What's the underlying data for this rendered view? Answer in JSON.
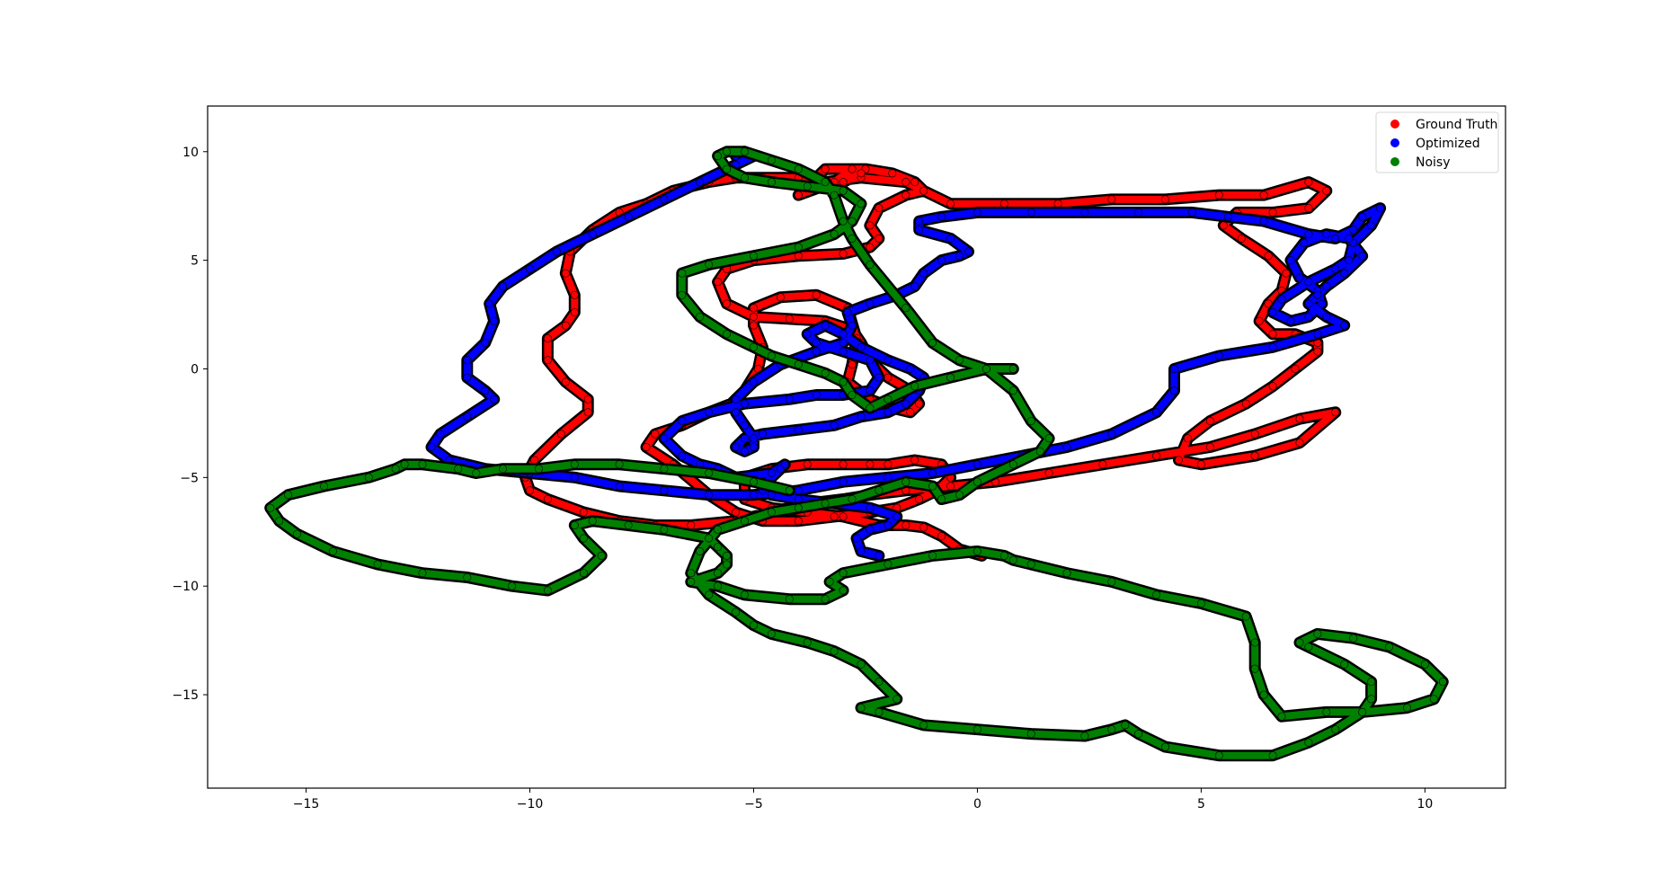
{
  "chart_data": {
    "type": "scatter",
    "title": "",
    "xlabel": "",
    "ylabel": "",
    "xlim": [
      -17.2,
      11.8
    ],
    "ylim": [
      -19.3,
      12.1
    ],
    "x_ticks": [
      -15,
      -10,
      -5,
      0,
      5,
      10
    ],
    "y_ticks": [
      10,
      5,
      0,
      -5,
      -10,
      -15
    ],
    "x_tick_labels": [
      "−15",
      "−10",
      "−5",
      "0",
      "5",
      "10"
    ],
    "y_tick_labels": [
      "10",
      "5",
      "0",
      "−5",
      "−10",
      "−15"
    ],
    "grid": false,
    "legend": {
      "placement": "top-right"
    },
    "series": [
      {
        "name": "Ground Truth",
        "color": "#ff0000",
        "x": [
          0.1,
          -0.4,
          -0.8,
          -1.2,
          -1.6,
          -2.2,
          -3.0,
          -3.8,
          -4.6,
          -5.2,
          -5.2,
          -4.6,
          -3.8,
          -3.0,
          -2.4,
          -2.0,
          -1.4,
          -0.8,
          -0.6,
          -0.9,
          -1.3,
          -1.8,
          -2.4,
          -3.2,
          -4.0,
          -4.8,
          -5.4,
          -6.0,
          -6.8,
          -7.4,
          -7.2,
          -6.6,
          -6.0,
          -5.5,
          -5.2,
          -4.9,
          -4.8,
          -5.0,
          -5.0,
          -4.4,
          -3.6,
          -2.9,
          -2.7,
          -2.8,
          -2.9,
          -2.4,
          -1.9,
          -1.5,
          -1.3,
          -1.5,
          -2.0,
          -2.4,
          -2.6,
          -2.8,
          -3.4,
          -4.2,
          -5.0,
          -5.6,
          -5.8,
          -5.6,
          -5.0,
          -4.0,
          -3.0,
          -2.4,
          -2.2,
          -2.4,
          -2.2,
          -1.6,
          -1.2,
          -1.4,
          -1.9,
          -2.5,
          -3.4,
          -4.0,
          -3.4,
          -2.6,
          -1.6,
          -0.6,
          0.6,
          1.8,
          3.0,
          4.2,
          5.4,
          6.4,
          7.4,
          7.8,
          7.4,
          6.6,
          5.8,
          5.5,
          5.9,
          6.5,
          6.9,
          6.8,
          6.5,
          6.3,
          6.6,
          7.1,
          7.6,
          7.6,
          7.1,
          6.6,
          6.0,
          5.2,
          4.7,
          4.5,
          5.0,
          6.2,
          7.2,
          8.0,
          7.2,
          6.2,
          5.2,
          4.0,
          2.8,
          1.6,
          0.4,
          -0.6,
          -1.6,
          -2.4,
          -3.0,
          -3.8,
          -4.6,
          -5.4,
          -6.4,
          -7.2,
          -8.0,
          -8.8,
          -9.6,
          -10.0,
          -10.1,
          -9.9,
          -9.3,
          -8.7,
          -8.7,
          -9.2,
          -9.6,
          -9.6,
          -9.2,
          -9.0,
          -9.0,
          -9.2,
          -9.1,
          -8.6,
          -8.0,
          -7.4,
          -6.8,
          -6.0,
          -5.4,
          -4.8,
          -4.0,
          -3.4,
          -3.0,
          -2.6,
          -2.8,
          -3.2,
          -4.0
        ],
        "y": [
          -8.6,
          -8.3,
          -7.7,
          -7.3,
          -7.2,
          -7.2,
          -6.8,
          -6.6,
          -6.4,
          -6.0,
          -5.0,
          -4.6,
          -4.4,
          -4.4,
          -4.4,
          -4.4,
          -4.2,
          -4.4,
          -5.0,
          -5.6,
          -6.0,
          -6.4,
          -6.6,
          -6.8,
          -7.0,
          -7.0,
          -6.6,
          -5.8,
          -4.4,
          -3.6,
          -3.0,
          -2.6,
          -2.0,
          -1.6,
          -1.0,
          0.0,
          1.0,
          2.0,
          2.8,
          3.3,
          3.4,
          2.8,
          1.4,
          0.2,
          -0.6,
          -1.4,
          -1.8,
          -2.0,
          -1.6,
          -1.0,
          -0.4,
          0.4,
          1.2,
          1.8,
          2.2,
          2.3,
          2.4,
          3.0,
          4.0,
          4.6,
          5.0,
          5.2,
          5.3,
          5.6,
          6.0,
          6.6,
          7.4,
          8.0,
          8.2,
          8.6,
          9.0,
          9.2,
          9.2,
          8.0,
          8.6,
          8.8,
          8.6,
          7.6,
          7.6,
          7.6,
          7.8,
          7.8,
          8.0,
          8.0,
          8.6,
          8.2,
          7.4,
          7.2,
          7.2,
          6.6,
          6.0,
          5.2,
          4.4,
          3.6,
          3.0,
          2.2,
          1.6,
          1.6,
          1.2,
          0.8,
          0.0,
          -0.8,
          -1.6,
          -2.4,
          -3.2,
          -4.2,
          -4.4,
          -4.0,
          -3.4,
          -2.0,
          -2.3,
          -3.0,
          -3.6,
          -4.0,
          -4.4,
          -4.8,
          -5.2,
          -5.4,
          -5.6,
          -5.8,
          -6.0,
          -6.2,
          -6.6,
          -7.0,
          -7.2,
          -7.2,
          -7.0,
          -6.6,
          -6.0,
          -5.6,
          -5.0,
          -4.2,
          -3.0,
          -2.0,
          -1.4,
          -0.6,
          0.4,
          1.4,
          2.0,
          2.6,
          3.4,
          4.4,
          5.4,
          6.4,
          7.2,
          7.6,
          8.2,
          8.6,
          8.8,
          8.8,
          8.8,
          8.6,
          8.6,
          9.0,
          9.2,
          8.6,
          8.0
        ]
      },
      {
        "name": "Optimized",
        "color": "#0000ff",
        "x": [
          -2.2,
          -2.6,
          -2.7,
          -2.4,
          -2.0,
          -1.8,
          -2.4,
          -3.2,
          -4.0,
          -4.6,
          -4.8,
          -4.8,
          -4.4,
          -4.3,
          -4.6,
          -5.4,
          -5.8,
          -6.2,
          -6.6,
          -7.0,
          -6.6,
          -6.0,
          -5.2,
          -4.2,
          -3.6,
          -3.0,
          -2.4,
          -2.2,
          -2.4,
          -3.0,
          -3.6,
          -3.8,
          -3.4,
          -3.0,
          -2.6,
          -2.0,
          -1.5,
          -1.2,
          -1.3,
          -1.6,
          -2.0,
          -2.6,
          -3.2,
          -4.0,
          -4.8,
          -5.2,
          -5.4,
          -5.2,
          -5.0,
          -5.0,
          -5.2,
          -5.4,
          -5.4,
          -5.0,
          -4.4,
          -3.6,
          -3.0,
          -2.8,
          -2.9,
          -2.4,
          -1.8,
          -1.4,
          -1.2,
          -0.8,
          -0.4,
          -0.2,
          -0.6,
          -1.3,
          -1.3,
          -0.8,
          0.0,
          1.2,
          2.4,
          3.6,
          4.8,
          5.6,
          6.4,
          7.4,
          8.0,
          8.4,
          8.6,
          9.0,
          8.8,
          8.4,
          8.3,
          8.0,
          7.4,
          6.8,
          6.6,
          7.0,
          7.4,
          7.7,
          7.6,
          7.2,
          7.0,
          7.3,
          7.8,
          8.3,
          8.6,
          8.2,
          7.8,
          7.6,
          7.4,
          7.8,
          8.2,
          7.6,
          6.6,
          5.4,
          4.4,
          4.4,
          4.0,
          3.0,
          2.0,
          1.0,
          0.0,
          -1.0,
          -2.0,
          -3.0,
          -4.0,
          -5.0,
          -6.0,
          -7.0,
          -8.0,
          -9.0,
          -10.0,
          -11.0,
          -11.8,
          -12.2,
          -12.0,
          -11.4,
          -10.8,
          -11.0,
          -11.4,
          -11.4,
          -11.0,
          -10.8,
          -10.9,
          -10.6,
          -10.0,
          -9.4,
          -8.6,
          -7.8,
          -7.0,
          -6.2,
          -5.4,
          -5.0,
          -5.2,
          -5.4
        ],
        "y": [
          -8.6,
          -8.4,
          -7.8,
          -7.4,
          -7.2,
          -6.8,
          -6.4,
          -6.2,
          -6.0,
          -5.8,
          -5.6,
          -5.4,
          -4.6,
          -4.4,
          -4.8,
          -5.0,
          -4.6,
          -4.4,
          -4.0,
          -3.2,
          -2.4,
          -2.0,
          -1.6,
          -1.4,
          -1.2,
          -1.2,
          -1.0,
          -0.4,
          0.4,
          0.8,
          1.2,
          1.6,
          2.0,
          1.6,
          1.0,
          0.4,
          0.0,
          -0.4,
          -1.0,
          -1.6,
          -2.0,
          -2.2,
          -2.6,
          -2.8,
          -3.0,
          -3.2,
          -3.6,
          -3.8,
          -3.6,
          -3.2,
          -2.6,
          -2.0,
          -1.4,
          -0.6,
          0.2,
          0.8,
          1.2,
          2.0,
          2.6,
          3.0,
          3.4,
          3.8,
          4.4,
          5.0,
          5.2,
          5.4,
          6.0,
          6.4,
          6.8,
          7.0,
          7.2,
          7.2,
          7.2,
          7.2,
          7.2,
          7.0,
          6.8,
          6.2,
          6.0,
          6.4,
          7.0,
          7.4,
          6.6,
          5.8,
          5.0,
          4.6,
          4.0,
          3.2,
          2.6,
          2.2,
          2.4,
          3.0,
          3.6,
          4.2,
          5.0,
          5.8,
          6.2,
          6.0,
          5.2,
          4.4,
          3.8,
          3.4,
          3.0,
          2.4,
          2.0,
          1.6,
          1.0,
          0.6,
          0.0,
          -1.0,
          -2.0,
          -3.0,
          -3.6,
          -4.0,
          -4.4,
          -4.8,
          -5.0,
          -5.2,
          -5.6,
          -5.8,
          -5.8,
          -5.6,
          -5.4,
          -5.0,
          -4.8,
          -4.6,
          -4.2,
          -3.6,
          -3.0,
          -2.2,
          -1.4,
          -1.0,
          -0.4,
          0.4,
          1.2,
          2.2,
          3.0,
          3.8,
          4.6,
          5.4,
          6.2,
          7.0,
          7.8,
          8.6,
          9.4,
          9.8,
          10.0,
          9.8
        ]
      },
      {
        "name": "Noisy",
        "color": "#008000",
        "x": [
          0.8,
          0.2,
          -0.6,
          -1.4,
          -2.0,
          -2.4,
          -2.8,
          -3.0,
          -3.4,
          -4.0,
          -4.6,
          -5.0,
          -5.6,
          -6.2,
          -6.6,
          -6.6,
          -6.0,
          -5.0,
          -4.0,
          -3.2,
          -2.8,
          -2.6,
          -3.0,
          -3.8,
          -4.6,
          -5.2,
          -5.6,
          -5.8,
          -5.6,
          -5.2,
          -4.6,
          -4.0,
          -3.4,
          -3.2,
          -3.0,
          -2.8,
          -2.4,
          -1.6,
          -1.0,
          -0.4,
          0.2,
          0.8,
          1.2,
          1.6,
          1.4,
          0.8,
          0.0,
          -0.4,
          -0.8,
          -1.0,
          -1.6,
          -2.2,
          -2.8,
          -3.4,
          -4.0,
          -4.6,
          -5.2,
          -5.8,
          -6.2,
          -6.4,
          -6.0,
          -5.4,
          -5.0,
          -4.6,
          -3.8,
          -3.2,
          -2.6,
          -2.2,
          -1.8,
          -2.6,
          -2.2,
          -1.2,
          0.0,
          1.2,
          2.4,
          3.0,
          3.3,
          3.6,
          4.2,
          5.4,
          6.6,
          7.4,
          8.0,
          8.6,
          8.8,
          8.8,
          8.2,
          7.4,
          7.2,
          7.6,
          8.4,
          9.2,
          10.0,
          10.4,
          10.2,
          9.6,
          8.6,
          7.8,
          6.8,
          6.4,
          6.2,
          6.2,
          6.0,
          5.0,
          4.0,
          3.0,
          2.0,
          1.2,
          0.8,
          0.6,
          0.0,
          -1.0,
          -2.0,
          -3.0,
          -3.3,
          -3.0,
          -3.4,
          -4.2,
          -5.2,
          -5.8,
          -6.4,
          -5.8,
          -5.6,
          -5.6,
          -5.8,
          -6.0,
          -7.0,
          -7.8,
          -8.6,
          -9.0,
          -8.8,
          -8.4,
          -8.8,
          -9.6,
          -10.4,
          -11.4,
          -12.4,
          -13.4,
          -14.4,
          -15.2,
          -15.6,
          -15.8,
          -15.4,
          -14.6,
          -13.6,
          -13.0,
          -12.8,
          -12.4,
          -11.6,
          -11.2,
          -10.6,
          -9.8,
          -9.0,
          -8.0,
          -7.0,
          -6.0,
          -5.0,
          -4.2
        ],
        "y": [
          0.0,
          0.0,
          -0.4,
          -0.8,
          -1.4,
          -1.8,
          -1.2,
          -0.6,
          -0.2,
          0.2,
          0.6,
          1.0,
          1.6,
          2.4,
          3.4,
          4.4,
          4.8,
          5.2,
          5.6,
          6.2,
          6.8,
          7.6,
          8.2,
          8.4,
          8.6,
          8.8,
          9.2,
          9.8,
          10.0,
          10.0,
          9.6,
          9.2,
          8.6,
          8.0,
          6.8,
          6.0,
          4.8,
          2.8,
          1.2,
          0.4,
          0.0,
          -1.0,
          -2.4,
          -3.2,
          -3.8,
          -4.4,
          -5.2,
          -5.8,
          -6.0,
          -5.4,
          -5.2,
          -5.6,
          -6.0,
          -6.2,
          -6.4,
          -6.6,
          -7.0,
          -7.4,
          -8.4,
          -9.4,
          -10.4,
          -11.2,
          -11.8,
          -12.2,
          -12.6,
          -13.0,
          -13.6,
          -14.4,
          -15.2,
          -15.6,
          -15.8,
          -16.4,
          -16.6,
          -16.8,
          -16.9,
          -16.6,
          -16.4,
          -16.8,
          -17.4,
          -17.8,
          -17.8,
          -17.2,
          -16.6,
          -15.8,
          -15.2,
          -14.4,
          -13.6,
          -12.8,
          -12.6,
          -12.2,
          -12.4,
          -12.8,
          -13.6,
          -14.4,
          -15.2,
          -15.6,
          -15.8,
          -15.8,
          -16.0,
          -15.0,
          -13.8,
          -12.6,
          -11.4,
          -10.8,
          -10.4,
          -9.8,
          -9.4,
          -9.0,
          -8.8,
          -8.6,
          -8.4,
          -8.6,
          -9.0,
          -9.4,
          -9.8,
          -10.2,
          -10.6,
          -10.6,
          -10.4,
          -10.0,
          -9.8,
          -9.4,
          -9.0,
          -8.6,
          -8.2,
          -7.8,
          -7.4,
          -7.2,
          -7.0,
          -7.2,
          -7.8,
          -8.6,
          -9.4,
          -10.2,
          -10.0,
          -9.6,
          -9.4,
          -9.0,
          -8.4,
          -7.6,
          -7.0,
          -6.4,
          -5.8,
          -5.4,
          -5.0,
          -4.6,
          -4.4,
          -4.4,
          -4.6,
          -4.8,
          -4.6,
          -4.6,
          -4.4,
          -4.4,
          -4.6,
          -4.8,
          -5.2,
          -5.6
        ]
      }
    ]
  }
}
